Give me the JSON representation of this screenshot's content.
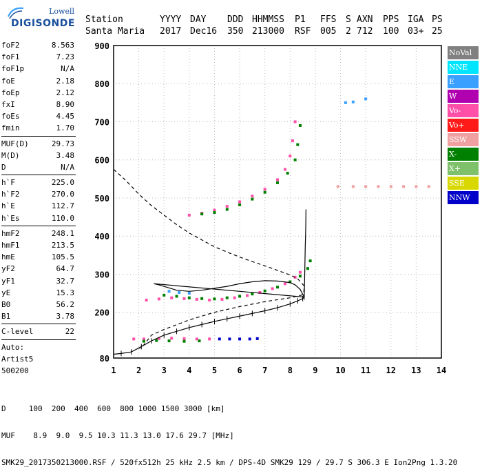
{
  "logo": {
    "line1": "Lowell",
    "line2": "DIGISONDE"
  },
  "header": {
    "row1": [
      "Station",
      "YYYY",
      "DAY",
      "DDD",
      "HHMMSS",
      "P1",
      "FFS",
      "S",
      "AXN",
      "PPS",
      "IGA",
      "PS"
    ],
    "row2": [
      "Santa Maria",
      "2017",
      "Dec16",
      "350",
      "213000",
      "RSF",
      "005",
      "2",
      "712",
      "100",
      "03+",
      "25"
    ]
  },
  "params": {
    "group1": [
      {
        "label": "foF2",
        "value": "8.563"
      },
      {
        "label": "foF1",
        "value": "7.23"
      },
      {
        "label": "foF1p",
        "value": "N/A"
      },
      {
        "label": "foE",
        "value": "2.18"
      },
      {
        "label": "foEp",
        "value": "2.12"
      },
      {
        "label": "fxI",
        "value": "8.90"
      },
      {
        "label": "foEs",
        "value": "4.45"
      },
      {
        "label": "fmin",
        "value": "1.70"
      }
    ],
    "group2": [
      {
        "label": "MUF(D)",
        "value": "29.73"
      },
      {
        "label": "M(D)",
        "value": "3.48"
      },
      {
        "label": "D",
        "value": "N/A"
      }
    ],
    "group3": [
      {
        "label": "h`F",
        "value": "225.0"
      },
      {
        "label": "h`F2",
        "value": "270.0"
      },
      {
        "label": "h`E",
        "value": "112.7"
      },
      {
        "label": "h`Es",
        "value": "110.0"
      }
    ],
    "group4": [
      {
        "label": "hmF2",
        "value": "248.1"
      },
      {
        "label": "hmF1",
        "value": "213.5"
      },
      {
        "label": "hmE",
        "value": "105.5"
      },
      {
        "label": "yF2",
        "value": "64.7"
      },
      {
        "label": "yF1",
        "value": "32.7"
      },
      {
        "label": "yE",
        "value": "15.3"
      },
      {
        "label": "B0",
        "value": "56.2"
      },
      {
        "label": "B1",
        "value": "3.78"
      }
    ],
    "group5": [
      {
        "label": "C-level",
        "value": "22"
      }
    ],
    "auto": [
      "Auto:",
      "Artist5",
      "500200"
    ]
  },
  "legend": [
    {
      "label": "NoVal",
      "bg": "#808080",
      "fg": "#ffffff"
    },
    {
      "label": "NNE",
      "bg": "#00e5ff",
      "fg": "#ffffff"
    },
    {
      "label": "E",
      "bg": "#3aa0ff",
      "fg": "#ffffff"
    },
    {
      "label": "W",
      "bg": "#b000b0",
      "fg": "#ffffff"
    },
    {
      "label": "Vo-",
      "bg": "#ff4fa8",
      "fg": "#ffffff"
    },
    {
      "label": "Vo+",
      "bg": "#ff1a1a",
      "fg": "#ffffff"
    },
    {
      "label": "SSW",
      "bg": "#f0a0a0",
      "fg": "#ffffff"
    },
    {
      "label": "X-",
      "bg": "#008000",
      "fg": "#ffffff"
    },
    {
      "label": "X+",
      "bg": "#7fc06a",
      "fg": "#ffffff"
    },
    {
      "label": "SSE",
      "bg": "#d8d800",
      "fg": "#ffffff"
    },
    {
      "label": "NNW",
      "bg": "#0000c8",
      "fg": "#ffffff"
    }
  ],
  "bottom": {
    "d_row": "D     100  200  400  600  800 1000 1500 3000 [km]",
    "muf_row": "MUF    8.9  9.0  9.5 10.3 11.3 13.0 17.6 29.7 [MHz]",
    "footer": "SMK29_2017350213000.RSF / 520fx512h 25 kHz 2.5 km / DPS-4D SMK29 129 / 29.7 S 306.3 E Ion2Png 1.3.20"
  },
  "chart_data": {
    "type": "scatter",
    "title": "",
    "xlabel": "",
    "ylabel": "",
    "xlim": [
      1,
      14
    ],
    "ylim": [
      80,
      900
    ],
    "x_ticks": [
      1,
      2,
      3,
      4,
      5,
      6,
      7,
      8,
      9,
      10,
      11,
      12,
      13,
      14
    ],
    "y_ticks": [
      80,
      200,
      300,
      400,
      500,
      600,
      700,
      800,
      900
    ],
    "grid": true,
    "series": [
      {
        "name": "Vo-",
        "color": "#ff4fa8",
        "points": [
          [
            4.0,
            455
          ],
          [
            4.5,
            460
          ],
          [
            5.0,
            468
          ],
          [
            5.5,
            478
          ],
          [
            6.0,
            490
          ],
          [
            6.5,
            505
          ],
          [
            7.0,
            523
          ],
          [
            7.5,
            548
          ],
          [
            7.8,
            575
          ],
          [
            8.0,
            610
          ],
          [
            8.1,
            650
          ],
          [
            8.2,
            700
          ],
          [
            2.3,
            232
          ],
          [
            2.8,
            235
          ],
          [
            3.3,
            238
          ],
          [
            3.8,
            236
          ],
          [
            4.3,
            234
          ],
          [
            4.8,
            232
          ],
          [
            5.3,
            234
          ],
          [
            5.8,
            238
          ],
          [
            6.3,
            244
          ],
          [
            6.8,
            252
          ],
          [
            7.3,
            262
          ],
          [
            7.8,
            275
          ],
          [
            8.2,
            292
          ],
          [
            8.4,
            305
          ],
          [
            1.8,
            130
          ],
          [
            2.2,
            130
          ],
          [
            2.8,
            131
          ],
          [
            3.3,
            132
          ],
          [
            3.8,
            131
          ],
          [
            4.3,
            130
          ],
          [
            4.8,
            130
          ]
        ]
      },
      {
        "name": "X-",
        "color": "#008000",
        "points": [
          [
            4.5,
            458
          ],
          [
            5.0,
            462
          ],
          [
            5.5,
            470
          ],
          [
            6.0,
            482
          ],
          [
            6.5,
            497
          ],
          [
            7.0,
            515
          ],
          [
            7.5,
            540
          ],
          [
            7.9,
            565
          ],
          [
            8.2,
            600
          ],
          [
            8.3,
            640
          ],
          [
            8.4,
            690
          ],
          [
            3.0,
            245
          ],
          [
            3.5,
            242
          ],
          [
            4.0,
            238
          ],
          [
            4.5,
            236
          ],
          [
            5.0,
            235
          ],
          [
            5.5,
            238
          ],
          [
            6.0,
            242
          ],
          [
            6.5,
            248
          ],
          [
            7.0,
            256
          ],
          [
            7.5,
            266
          ],
          [
            8.0,
            280
          ],
          [
            8.4,
            295
          ],
          [
            8.7,
            315
          ],
          [
            8.8,
            335
          ],
          [
            2.2,
            124
          ],
          [
            2.7,
            126
          ],
          [
            3.2,
            125
          ],
          [
            3.8,
            124
          ],
          [
            4.4,
            125
          ]
        ]
      },
      {
        "name": "NNW",
        "color": "#0000c8",
        "points": [
          [
            5.2,
            130
          ],
          [
            5.6,
            130
          ],
          [
            6.0,
            130
          ],
          [
            6.4,
            130
          ],
          [
            6.7,
            131
          ]
        ]
      },
      {
        "name": "E",
        "color": "#3aa0ff",
        "points": [
          [
            3.2,
            255
          ],
          [
            3.6,
            252
          ],
          [
            4.0,
            250
          ],
          [
            10.2,
            750
          ],
          [
            10.5,
            752
          ],
          [
            11.0,
            760
          ]
        ]
      },
      {
        "name": "SSW",
        "color": "#f0a0a0",
        "points": [
          [
            9.9,
            530
          ],
          [
            10.5,
            530
          ],
          [
            11.0,
            530
          ],
          [
            11.5,
            530
          ],
          [
            12.0,
            530
          ],
          [
            12.5,
            530
          ],
          [
            13.0,
            530
          ],
          [
            13.5,
            530
          ]
        ]
      }
    ],
    "lines": [
      {
        "name": "trace",
        "points": [
          [
            1.0,
            90
          ],
          [
            1.3,
            92
          ],
          [
            1.7,
            96
          ],
          [
            2.1,
            110
          ],
          [
            2.5,
            125
          ],
          [
            3.0,
            140
          ],
          [
            3.5,
            150
          ],
          [
            4.0,
            160
          ],
          [
            4.5,
            168
          ],
          [
            5.0,
            176
          ],
          [
            5.5,
            183
          ],
          [
            6.0,
            190
          ],
          [
            6.5,
            197
          ],
          [
            7.0,
            204
          ],
          [
            7.5,
            212
          ],
          [
            8.0,
            222
          ],
          [
            8.3,
            230
          ],
          [
            8.5,
            236
          ],
          [
            8.56,
            240
          ],
          [
            8.4,
            260
          ],
          [
            8.2,
            272
          ],
          [
            8.0,
            278
          ],
          [
            7.5,
            282
          ],
          [
            7.0,
            283
          ],
          [
            6.5,
            280
          ],
          [
            6.0,
            275
          ],
          [
            5.5,
            268
          ],
          [
            5.0,
            263
          ],
          [
            4.5,
            258
          ],
          [
            4.0,
            255
          ],
          [
            3.5,
            258
          ],
          [
            3.3,
            262
          ],
          [
            3.0,
            268
          ],
          [
            2.8,
            272
          ],
          [
            2.6,
            275
          ],
          [
            8.56,
            240
          ],
          [
            8.58,
            300
          ],
          [
            8.6,
            370
          ],
          [
            8.62,
            420
          ],
          [
            8.63,
            470
          ]
        ]
      },
      {
        "name": "profile",
        "points": [
          [
            1.0,
            575
          ],
          [
            1.5,
            545
          ],
          [
            2.0,
            510
          ],
          [
            2.5,
            480
          ],
          [
            3.0,
            455
          ],
          [
            3.5,
            430
          ],
          [
            4.0,
            408
          ],
          [
            4.5,
            390
          ],
          [
            5.0,
            372
          ],
          [
            5.5,
            358
          ],
          [
            6.0,
            345
          ],
          [
            6.5,
            333
          ],
          [
            7.0,
            322
          ],
          [
            7.5,
            310
          ],
          [
            8.0,
            298
          ],
          [
            8.3,
            288
          ],
          [
            8.55,
            270
          ],
          [
            8.55,
            255
          ],
          [
            8.45,
            245
          ],
          [
            8.0,
            238
          ],
          [
            7.0,
            228
          ],
          [
            6.0,
            215
          ],
          [
            5.0,
            200
          ],
          [
            4.0,
            180
          ],
          [
            3.0,
            155
          ],
          [
            2.5,
            140
          ],
          [
            2.18,
            113
          ],
          [
            2.0,
            105
          ]
        ]
      }
    ]
  }
}
